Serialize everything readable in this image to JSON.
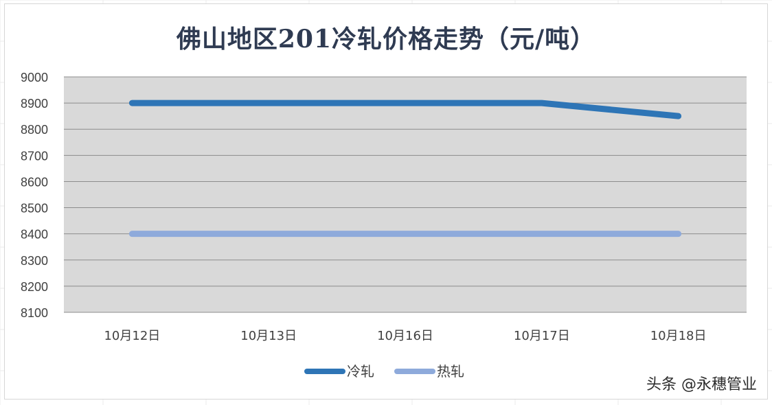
{
  "chart_data": {
    "type": "line",
    "title": "佛山地区201冷轧价格走势（元/吨）",
    "categories": [
      "10月12日",
      "10月13日",
      "10月16日",
      "10月17日",
      "10月18日"
    ],
    "series": [
      {
        "name": "冷轧",
        "color": "#2e75b6",
        "values": [
          8900,
          8900,
          8900,
          8900,
          8850
        ]
      },
      {
        "name": "热轧",
        "color": "#8eaadb",
        "values": [
          8400,
          8400,
          8400,
          8400,
          8400
        ]
      }
    ],
    "ylim": [
      8100,
      9000
    ],
    "yticks": [
      9000,
      8900,
      8800,
      8700,
      8600,
      8500,
      8400,
      8300,
      8200,
      8100
    ],
    "grid": true,
    "plot_background": "#d9d9d9",
    "legend_position": "bottom"
  },
  "watermark": "头条 @永穗管业"
}
